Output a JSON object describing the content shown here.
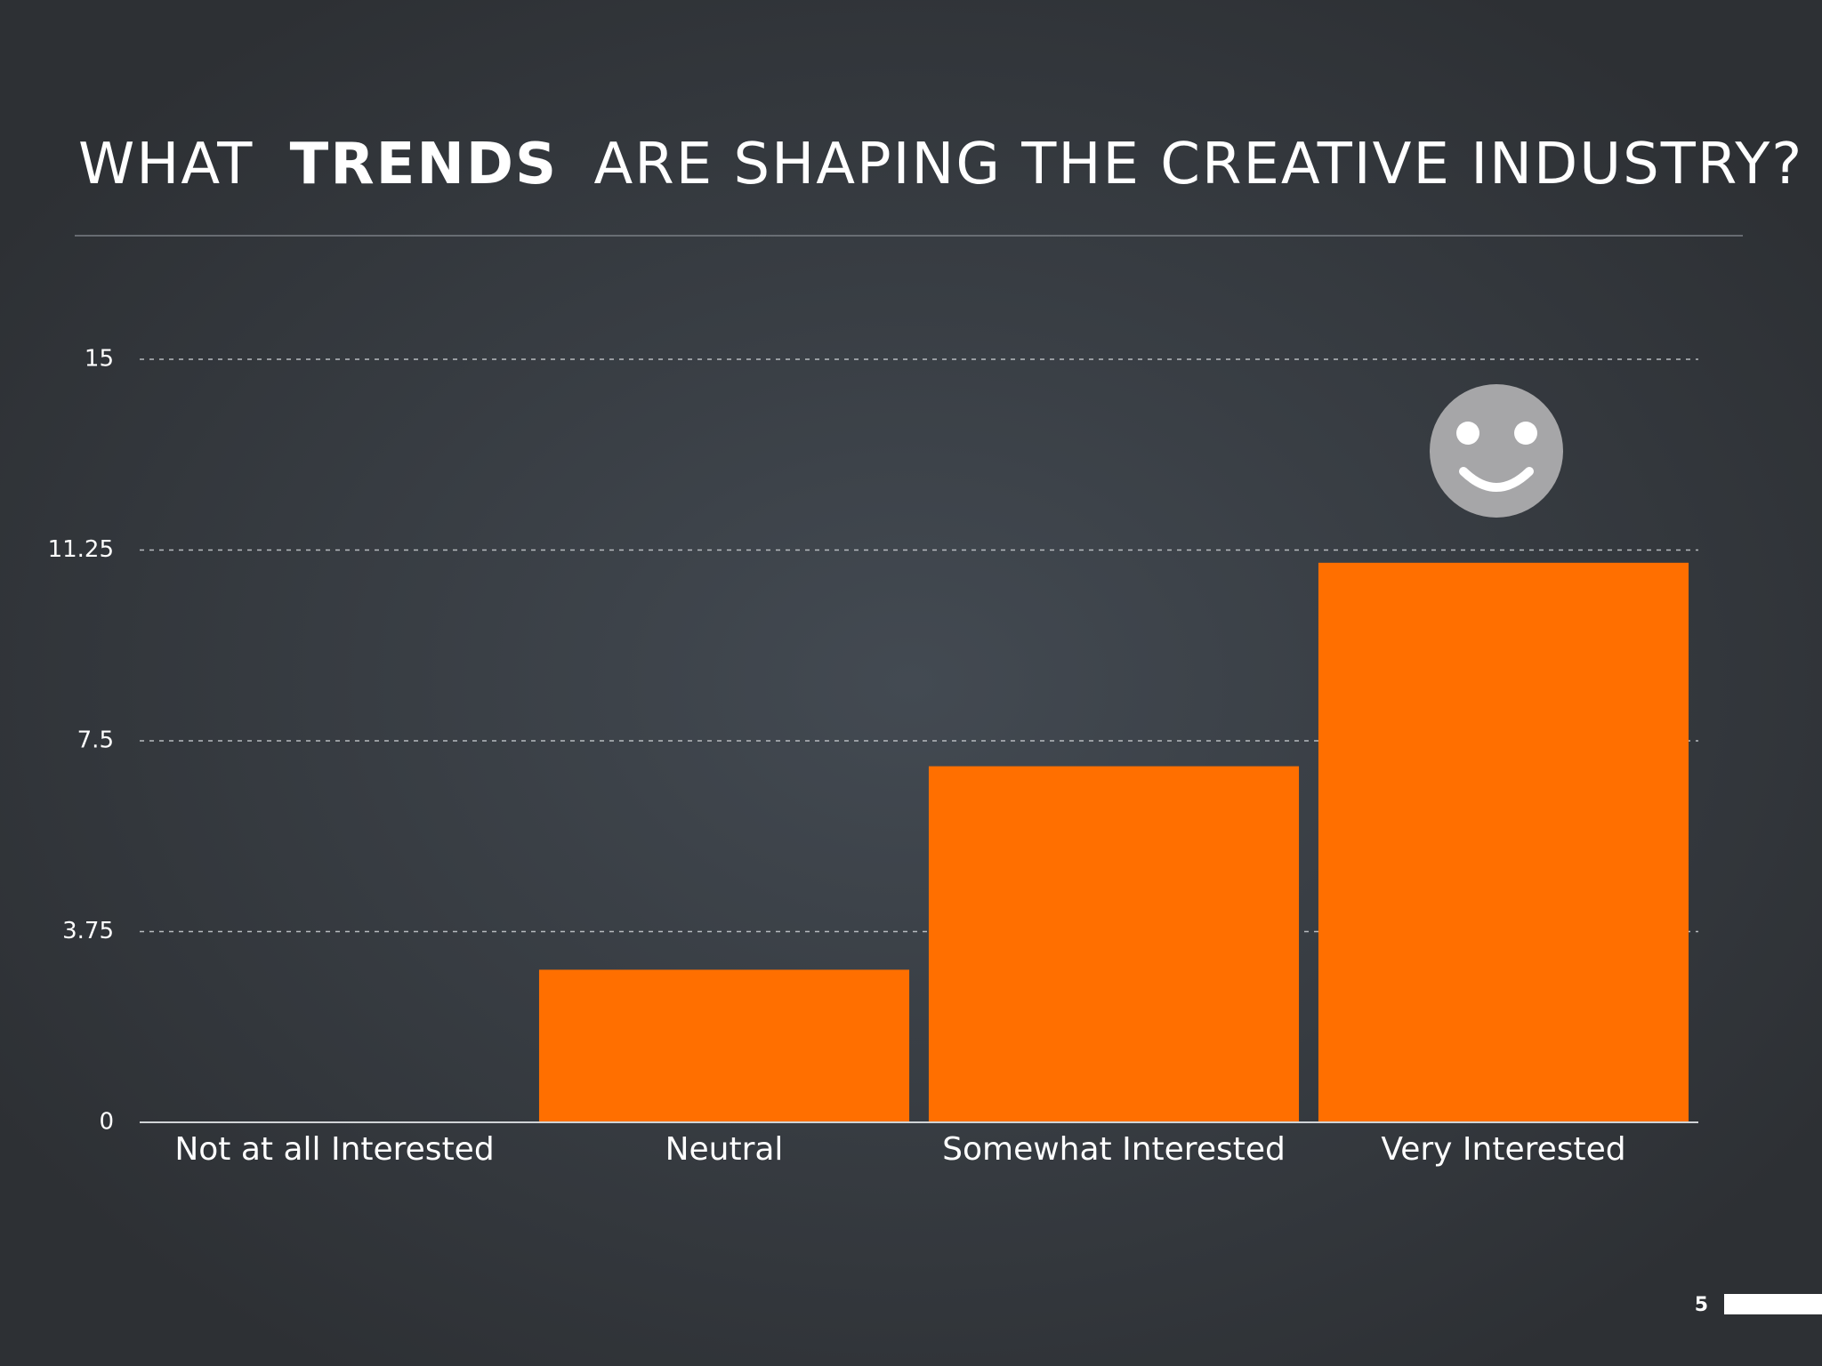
{
  "chart_data": {
    "type": "bar",
    "title": [
      "WHAT",
      "TRENDS",
      "ARE SHAPING THE CREATIVE INDUSTRY?"
    ],
    "categories": [
      "Not at all Interested",
      "Neutral",
      "Somewhat Interested",
      "Very Interested"
    ],
    "values": [
      0,
      3,
      7,
      11
    ],
    "color": "#ff6f00",
    "ylim": [
      0,
      15
    ],
    "yticks": [
      0,
      3.75,
      7.5,
      11.25,
      15
    ],
    "grid": true
  },
  "page_number": 5
}
